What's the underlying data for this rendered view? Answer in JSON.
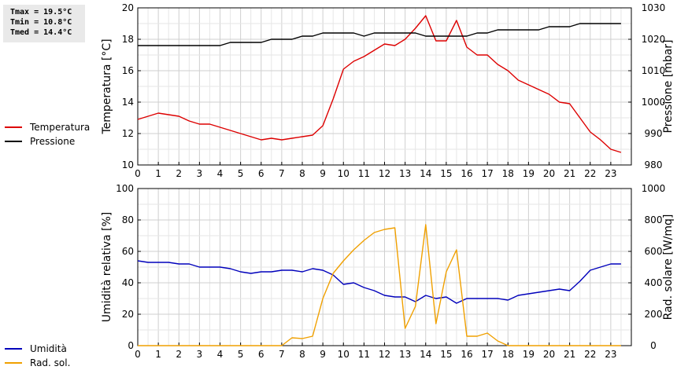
{
  "stats": {
    "tmax": "Tmax = 19.5°C",
    "tmin": "Tmin = 10.8°C",
    "tmed": "Tmed = 14.4°C"
  },
  "chart_data": [
    {
      "type": "line",
      "ylabel": "Temperatura [°C]",
      "y2label": "Pressione [mbar]",
      "xlim": [
        0,
        24
      ],
      "ylim": [
        10,
        20
      ],
      "y2lim": [
        980,
        1030
      ],
      "x_ticks": [
        0,
        1,
        2,
        3,
        4,
        5,
        6,
        7,
        8,
        9,
        10,
        11,
        12,
        13,
        14,
        15,
        16,
        17,
        18,
        19,
        20,
        21,
        22,
        23
      ],
      "y_ticks": [
        10,
        12,
        14,
        16,
        18,
        20
      ],
      "y2_ticks": [
        980,
        990,
        1000,
        1010,
        1020,
        1030
      ],
      "grid": true,
      "legend_position": "left",
      "series": [
        {
          "name": "Temperatura",
          "color": "#dd0000",
          "axis": "left",
          "x": [
            0,
            0.5,
            1,
            1.5,
            2,
            2.5,
            3,
            3.5,
            4,
            4.5,
            5,
            5.5,
            6,
            6.5,
            7,
            7.5,
            8,
            8.5,
            9,
            9.5,
            10,
            10.5,
            11,
            11.5,
            12,
            12.5,
            13,
            13.5,
            14,
            14.5,
            15,
            15.5,
            16,
            16.5,
            17,
            17.5,
            18,
            18.5,
            19,
            19.5,
            20,
            20.5,
            21,
            21.5,
            22,
            22.5,
            23,
            23.5
          ],
          "y": [
            12.9,
            13.1,
            13.3,
            13.2,
            13.1,
            12.8,
            12.6,
            12.6,
            12.4,
            12.2,
            12.0,
            11.8,
            11.6,
            11.7,
            11.6,
            11.7,
            11.8,
            11.9,
            12.5,
            14.2,
            16.1,
            16.6,
            16.9,
            17.3,
            17.7,
            17.6,
            18.0,
            18.7,
            19.5,
            17.9,
            17.9,
            19.2,
            17.5,
            17.0,
            17.0,
            16.4,
            16.0,
            15.4,
            15.1,
            14.8,
            14.5,
            14.0,
            13.9,
            13.0,
            12.1,
            11.6,
            11.0,
            10.8
          ]
        },
        {
          "name": "Pressione",
          "color": "#000000",
          "axis": "right",
          "x": [
            0,
            0.5,
            1,
            1.5,
            2,
            2.5,
            3,
            3.5,
            4,
            4.5,
            5,
            5.5,
            6,
            6.5,
            7,
            7.5,
            8,
            8.5,
            9,
            9.5,
            10,
            10.5,
            11,
            11.5,
            12,
            12.5,
            13,
            13.5,
            14,
            14.5,
            15,
            15.5,
            16,
            16.5,
            17,
            17.5,
            18,
            18.5,
            19,
            19.5,
            20,
            20.5,
            21,
            21.5,
            22,
            22.5,
            23,
            23.5
          ],
          "y": [
            1018,
            1018,
            1018,
            1018,
            1018,
            1018,
            1018,
            1018,
            1018,
            1019,
            1019,
            1019,
            1019,
            1020,
            1020,
            1020,
            1021,
            1021,
            1022,
            1022,
            1022,
            1022,
            1021,
            1022,
            1022,
            1022,
            1022,
            1022,
            1021,
            1021,
            1021,
            1021,
            1021,
            1022,
            1022,
            1023,
            1023,
            1023,
            1023,
            1023,
            1024,
            1024,
            1024,
            1025,
            1025,
            1025,
            1025,
            1025
          ]
        }
      ]
    },
    {
      "type": "line",
      "ylabel": "Umidità relativa [%]",
      "y2label": "Rad. solare [W/mq]",
      "xlim": [
        0,
        24
      ],
      "ylim": [
        0,
        100
      ],
      "y2lim": [
        0,
        1000
      ],
      "x_ticks": [
        0,
        1,
        2,
        3,
        4,
        5,
        6,
        7,
        8,
        9,
        10,
        11,
        12,
        13,
        14,
        15,
        16,
        17,
        18,
        19,
        20,
        21,
        22,
        23
      ],
      "y_ticks": [
        0,
        20,
        40,
        60,
        80,
        100
      ],
      "y2_ticks": [
        0,
        200,
        400,
        600,
        800,
        1000
      ],
      "grid": true,
      "legend_position": "left",
      "series": [
        {
          "name": "Umidità",
          "color": "#0000bb",
          "axis": "left",
          "x": [
            0,
            0.5,
            1,
            1.5,
            2,
            2.5,
            3,
            3.5,
            4,
            4.5,
            5,
            5.5,
            6,
            6.5,
            7,
            7.5,
            8,
            8.5,
            9,
            9.5,
            10,
            10.5,
            11,
            11.5,
            12,
            12.5,
            13,
            13.5,
            14,
            14.5,
            15,
            15.5,
            16,
            16.5,
            17,
            17.5,
            18,
            18.5,
            19,
            19.5,
            20,
            20.5,
            21,
            21.5,
            22,
            22.5,
            23,
            23.5
          ],
          "y": [
            54,
            53,
            53,
            53,
            52,
            52,
            50,
            50,
            50,
            49,
            47,
            46,
            47,
            47,
            48,
            48,
            47,
            49,
            48,
            45,
            39,
            40,
            37,
            35,
            32,
            31,
            31,
            28,
            32,
            30,
            31,
            27,
            30,
            30,
            30,
            30,
            29,
            32,
            33,
            34,
            35,
            36,
            35,
            41,
            48,
            50,
            52,
            52
          ]
        },
        {
          "name": "Rad. sol.",
          "color": "#f0a000",
          "axis": "right",
          "x": [
            0,
            0.5,
            1,
            1.5,
            2,
            2.5,
            3,
            3.5,
            4,
            4.5,
            5,
            5.5,
            6,
            6.5,
            7,
            7.5,
            8,
            8.5,
            9,
            9.5,
            10,
            10.5,
            11,
            11.5,
            12,
            12.5,
            13,
            13.5,
            14,
            14.5,
            15,
            15.5,
            16,
            16.5,
            17,
            17.5,
            18,
            18.5,
            19,
            19.5,
            20,
            20.5,
            21,
            21.5,
            22,
            22.5,
            23,
            23.5
          ],
          "y": [
            0,
            0,
            0,
            0,
            0,
            0,
            0,
            0,
            0,
            0,
            0,
            0,
            0,
            0,
            0,
            50,
            45,
            60,
            300,
            460,
            540,
            610,
            670,
            720,
            740,
            750,
            110,
            250,
            770,
            140,
            470,
            610,
            60,
            60,
            80,
            30,
            0,
            0,
            0,
            0,
            0,
            0,
            0,
            0,
            0,
            0,
            0,
            0
          ]
        }
      ]
    }
  ]
}
